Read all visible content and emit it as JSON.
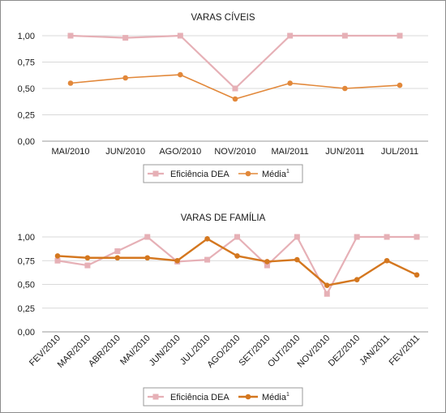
{
  "chart_data": [
    {
      "type": "line",
      "title": "VARAS CÍVEIS",
      "categories": [
        "MAI/2010",
        "JUN/2010",
        "AGO/2010",
        "NOV/2010",
        "MAI/2011",
        "JUN/2011",
        "JUL/2011"
      ],
      "series": [
        {
          "name": "Eficiência DEA",
          "color": "#e6b0b6",
          "marker": "square",
          "values": [
            1.0,
            0.98,
            1.0,
            0.5,
            1.0,
            1.0,
            1.0
          ]
        },
        {
          "name": "Média",
          "superscript": "1",
          "color": "#e2883a",
          "marker": "circle",
          "values": [
            0.55,
            0.6,
            0.63,
            0.4,
            0.55,
            0.5,
            0.53
          ]
        }
      ],
      "ylim": [
        0,
        1
      ],
      "yticks": [
        "0,00",
        "0,25",
        "0,50",
        "0,75",
        "1,00"
      ],
      "grid": true,
      "legend": "bottom"
    },
    {
      "type": "line",
      "title": "VARAS DE FAMÍLIA",
      "categories": [
        "FEV/2010",
        "MAR/2010",
        "ABR/2010",
        "MAI/2010",
        "JUN/2010",
        "JUL/2010",
        "AGO/2010",
        "SET/2010",
        "OUT/2010",
        "NOV/2010",
        "DEZ/2010",
        "JAN/2011",
        "FEV/2011"
      ],
      "series": [
        {
          "name": "Eficiência DEA",
          "color": "#e6b0b6",
          "marker": "square",
          "values": [
            0.75,
            0.7,
            0.85,
            1.0,
            0.74,
            0.76,
            1.0,
            0.7,
            1.0,
            0.4,
            1.0,
            1.0,
            1.0
          ]
        },
        {
          "name": "Média",
          "superscript": "1",
          "color": "#d4771f",
          "marker": "circle",
          "values": [
            0.8,
            0.78,
            0.78,
            0.78,
            0.75,
            0.98,
            0.8,
            0.74,
            0.76,
            0.49,
            0.55,
            0.75,
            0.6
          ]
        }
      ],
      "ylim": [
        0,
        1
      ],
      "yticks": [
        "0,00",
        "0,25",
        "0,50",
        "0,75",
        "1,00"
      ],
      "grid": true,
      "legend": "bottom"
    }
  ]
}
